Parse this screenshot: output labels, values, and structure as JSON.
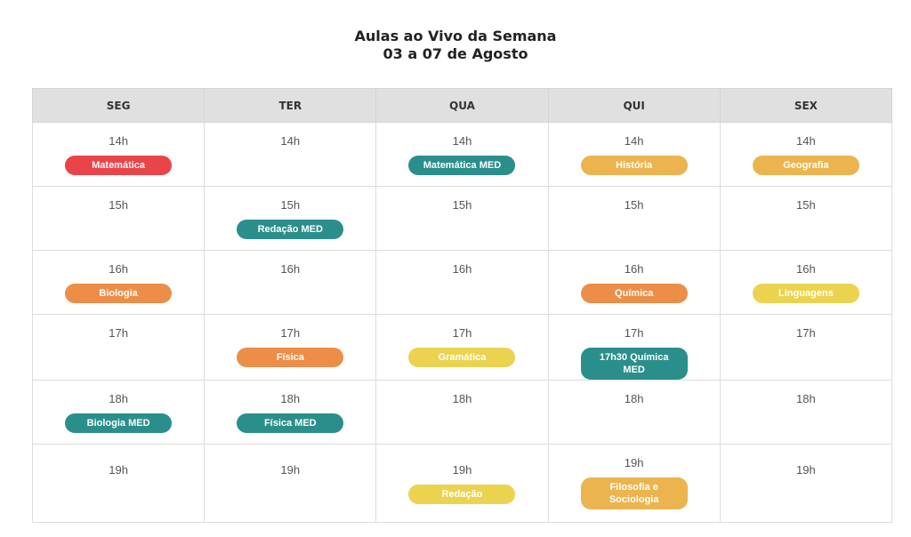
{
  "header": {
    "title": "Aulas ao Vivo da Semana",
    "subtitle": "03 a 07 de Agosto"
  },
  "table": {
    "days": [
      "SEG",
      "TER",
      "QUA",
      "QUI",
      "SEX"
    ],
    "rows": [
      {
        "cells": [
          {
            "time": "14h",
            "class": {
              "label": "Matemática",
              "color": "#e9444a"
            }
          },
          {
            "time": "14h"
          },
          {
            "time": "14h",
            "class": {
              "label": "Matemática MED",
              "color": "#2a8f8b"
            }
          },
          {
            "time": "14h",
            "class": {
              "label": "História",
              "color": "#ebb44f"
            }
          },
          {
            "time": "14h",
            "class": {
              "label": "Geografia",
              "color": "#ebb44f"
            }
          }
        ]
      },
      {
        "cells": [
          {
            "time": "15h"
          },
          {
            "time": "15h",
            "class": {
              "label": "Redação MED",
              "color": "#2a8f8b"
            }
          },
          {
            "time": "15h"
          },
          {
            "time": "15h"
          },
          {
            "time": "15h"
          }
        ]
      },
      {
        "cells": [
          {
            "time": "16h",
            "class": {
              "label": "Biologia",
              "color": "#ec8e48"
            }
          },
          {
            "time": "16h"
          },
          {
            "time": "16h"
          },
          {
            "time": "16h",
            "class": {
              "label": "Química",
              "color": "#ec8e48"
            }
          },
          {
            "time": "16h",
            "class": {
              "label": "Linguagens",
              "color": "#ebd350"
            }
          }
        ]
      },
      {
        "cells": [
          {
            "time": "17h"
          },
          {
            "time": "17h",
            "class": {
              "label": "Física",
              "color": "#ec8e48"
            }
          },
          {
            "time": "17h",
            "class": {
              "label": "Gramática",
              "color": "#ebd350"
            }
          },
          {
            "time": "17h",
            "class": {
              "label": "17h30 Química MED",
              "color": "#2a8f8b"
            }
          },
          {
            "time": "17h"
          }
        ]
      },
      {
        "cells": [
          {
            "time": "18h",
            "class": {
              "label": "Biologia MED",
              "color": "#2a8f8b"
            }
          },
          {
            "time": "18h",
            "class": {
              "label": "Física MED",
              "color": "#2a8f8b"
            }
          },
          {
            "time": "18h"
          },
          {
            "time": "18h"
          },
          {
            "time": "18h"
          }
        ]
      },
      {
        "cells": [
          {
            "time": "19h"
          },
          {
            "time": "19h"
          },
          {
            "time": "19h",
            "class": {
              "label": "Redação",
              "color": "#ebd350"
            }
          },
          {
            "time": "19h",
            "class": {
              "label": "Filosofia e Sociologia",
              "color": "#ebb44f"
            }
          },
          {
            "time": "19h"
          }
        ]
      }
    ]
  }
}
